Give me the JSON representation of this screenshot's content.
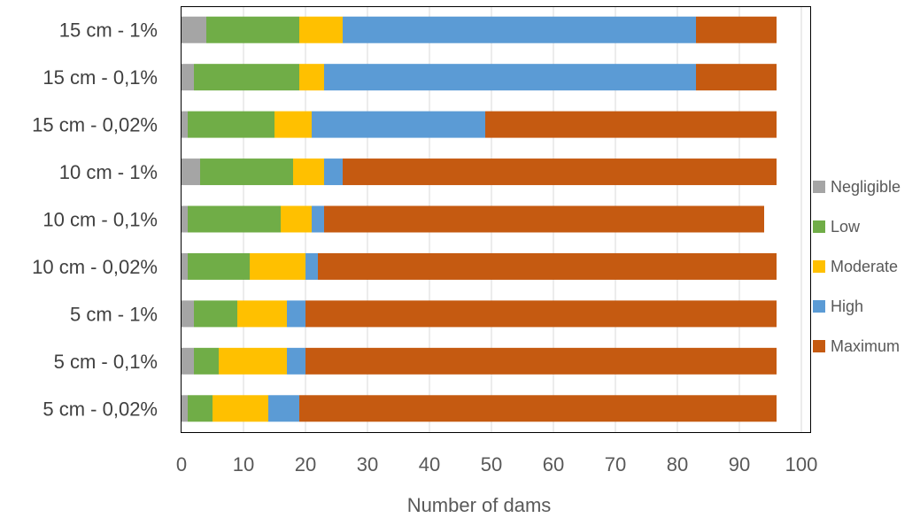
{
  "chart_data": {
    "type": "bar",
    "orientation": "horizontal",
    "stacked": true,
    "categories": [
      "15 cm - 1%",
      "15 cm - 0,1%",
      "15 cm - 0,02%",
      "10 cm - 1%",
      "10 cm - 0,1%",
      "10 cm - 0,02%",
      "5 cm - 1%",
      "5 cm - 0,1%",
      "5 cm - 0,02%"
    ],
    "series": [
      {
        "name": "Negligible",
        "color": "#a5a5a5",
        "values": [
          4,
          2,
          1,
          3,
          1,
          1,
          2,
          2,
          1
        ]
      },
      {
        "name": "Low",
        "color": "#70ad47",
        "values": [
          15,
          17,
          14,
          15,
          15,
          10,
          7,
          4,
          4
        ]
      },
      {
        "name": "Moderate",
        "color": "#ffc000",
        "values": [
          7,
          4,
          6,
          5,
          5,
          9,
          8,
          11,
          9
        ]
      },
      {
        "name": "High",
        "color": "#5b9bd5",
        "values": [
          57,
          60,
          28,
          3,
          2,
          2,
          3,
          3,
          5
        ]
      },
      {
        "name": "Maximum",
        "color": "#c55a11",
        "values": [
          13,
          13,
          47,
          70,
          71,
          74,
          76,
          76,
          77
        ]
      }
    ],
    "xlabel": "Number of dams",
    "xlim": [
      0,
      100
    ],
    "xticks": [
      0,
      10,
      20,
      30,
      40,
      50,
      60,
      70,
      80,
      90,
      100
    ],
    "grid": "vertical",
    "legend_position": "right"
  }
}
